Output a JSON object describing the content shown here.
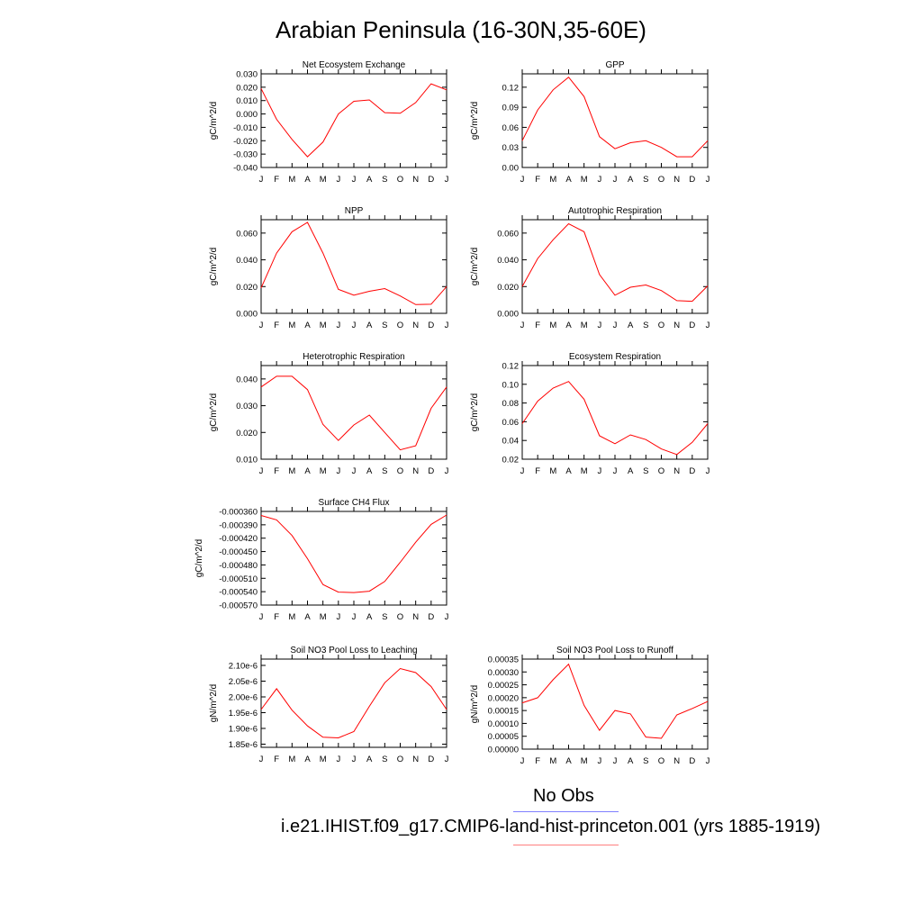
{
  "title": "Arabian Peninsula (16-30N,35-60E)",
  "months": [
    "J",
    "F",
    "M",
    "A",
    "M",
    "J",
    "J",
    "A",
    "S",
    "O",
    "N",
    "D",
    "J"
  ],
  "line_color": "#ff0000",
  "legend": {
    "obs_label": "No Obs",
    "obs_color": "#8080ff",
    "model_label": "i.e21.IHIST.f09_g17.CMIP6-land-hist-princeton.001 (yrs 1885-1919)",
    "model_color": "#ff8080"
  },
  "chart_data": [
    {
      "type": "line",
      "title": "Net Ecosystem Exchange",
      "ylabel": "gC/m^2/d",
      "ylim": [
        -0.04,
        0.03
      ],
      "yticks": [
        "-0.040",
        "-0.030",
        "-0.020",
        "-0.010",
        "0.000",
        "0.010",
        "0.020",
        "0.030"
      ],
      "ytick_values": [
        -0.04,
        -0.03,
        -0.02,
        -0.01,
        0,
        0.01,
        0.02,
        0.03
      ],
      "values": [
        0.019,
        -0.004,
        -0.019,
        -0.032,
        -0.021,
        0.0,
        0.0095,
        0.0105,
        0.001,
        0.0005,
        0.0085,
        0.0225,
        0.018
      ]
    },
    {
      "type": "line",
      "title": "GPP",
      "ylabel": "gC/m^2/d",
      "ylim": [
        0,
        0.14
      ],
      "yticks": [
        "0.00",
        "0.03",
        "0.06",
        "0.09",
        "0.12"
      ],
      "ytick_values": [
        0,
        0.03,
        0.06,
        0.09,
        0.12
      ],
      "values": [
        0.04,
        0.086,
        0.116,
        0.135,
        0.106,
        0.046,
        0.028,
        0.037,
        0.04,
        0.03,
        0.016,
        0.016,
        0.04
      ]
    },
    {
      "type": "line",
      "title": "NPP",
      "ylabel": "gC/m^2/d",
      "ylim": [
        0,
        0.07
      ],
      "yticks": [
        "0.000",
        "0.020",
        "0.040",
        "0.060"
      ],
      "ytick_values": [
        0,
        0.02,
        0.04,
        0.06
      ],
      "values": [
        0.019,
        0.045,
        0.061,
        0.068,
        0.045,
        0.018,
        0.0135,
        0.0165,
        0.0185,
        0.013,
        0.0065,
        0.0068,
        0.02
      ]
    },
    {
      "type": "line",
      "title": "Autotrophic Respiration",
      "ylabel": "gC/m^2/d",
      "ylim": [
        0,
        0.07
      ],
      "yticks": [
        "0.000",
        "0.020",
        "0.040",
        "0.060"
      ],
      "ytick_values": [
        0,
        0.02,
        0.04,
        0.06
      ],
      "values": [
        0.02,
        0.041,
        0.055,
        0.067,
        0.061,
        0.029,
        0.0135,
        0.0195,
        0.0212,
        0.017,
        0.0095,
        0.009,
        0.0205
      ]
    },
    {
      "type": "line",
      "title": "Heterotrophic Respiration",
      "ylabel": "gC/m^2/d",
      "ylim": [
        0.01,
        0.045
      ],
      "yticks": [
        "0.010",
        "0.020",
        "0.030",
        "0.040"
      ],
      "ytick_values": [
        0.01,
        0.02,
        0.03,
        0.04
      ],
      "values": [
        0.037,
        0.041,
        0.041,
        0.036,
        0.023,
        0.017,
        0.0228,
        0.0265,
        0.02,
        0.0135,
        0.015,
        0.029,
        0.037
      ]
    },
    {
      "type": "line",
      "title": "Ecosystem Respiration",
      "ylabel": "gC/m^2/d",
      "ylim": [
        0.02,
        0.12
      ],
      "yticks": [
        "0.02",
        "0.04",
        "0.06",
        "0.08",
        "0.10",
        "0.12"
      ],
      "ytick_values": [
        0.02,
        0.04,
        0.06,
        0.08,
        0.1,
        0.12
      ],
      "values": [
        0.058,
        0.082,
        0.096,
        0.103,
        0.084,
        0.045,
        0.0365,
        0.046,
        0.041,
        0.031,
        0.025,
        0.038,
        0.058
      ]
    },
    {
      "type": "line",
      "title": "Surface CH4 Flux",
      "ylabel": "gC/m^2/d",
      "ylim": [
        -0.00057,
        -0.00036
      ],
      "yticks": [
        "-0.000570",
        "-0.000540",
        "-0.000510",
        "-0.000480",
        "-0.000450",
        "-0.000420",
        "-0.000390",
        "-0.000360"
      ],
      "ytick_values": [
        -0.00057,
        -0.00054,
        -0.00051,
        -0.00048,
        -0.00045,
        -0.00042,
        -0.00039,
        -0.00036
      ],
      "values": [
        -0.000369,
        -0.000379,
        -0.000414,
        -0.000466,
        -0.000524,
        -0.000541,
        -0.000542,
        -0.000539,
        -0.000517,
        -0.000474,
        -0.000429,
        -0.000389,
        -0.000368
      ]
    },
    {
      "type": "line",
      "title": "Soil NO3 Pool Loss to Leaching",
      "ylabel": "gN/m^2/d",
      "ylim": [
        1.84e-06,
        2.12e-06
      ],
      "yticks": [
        "1.85e-6",
        "1.90e-6",
        "1.95e-6",
        "2.00e-6",
        "2.05e-6",
        "2.10e-6"
      ],
      "ytick_values": [
        1.85e-06,
        1.9e-06,
        1.95e-06,
        2e-06,
        2.05e-06,
        2.1e-06
      ],
      "values": [
        1.96e-06,
        2.026e-06,
        1.958e-06,
        1.908e-06,
        1.872e-06,
        1.87e-06,
        1.89e-06,
        1.97e-06,
        2.045e-06,
        2.09e-06,
        2.077e-06,
        2.033e-06,
        1.96e-06
      ]
    },
    {
      "type": "line",
      "title": "Soil NO3 Pool Loss to Runoff",
      "ylabel": "gN/m^2/d",
      "ylim": [
        0,
        0.00035
      ],
      "yticks": [
        "0.00000",
        "0.00005",
        "0.00010",
        "0.00015",
        "0.00020",
        "0.00025",
        "0.00030",
        "0.00035"
      ],
      "ytick_values": [
        0,
        5e-05,
        0.0001,
        0.00015,
        0.0002,
        0.00025,
        0.0003,
        0.00035
      ],
      "values": [
        0.00018,
        0.0002,
        0.00027,
        0.00033,
        0.00017,
        7.3e-05,
        0.00015,
        0.000137,
        4.7e-05,
        4.2e-05,
        0.000133,
        0.000158,
        0.000185
      ]
    }
  ]
}
